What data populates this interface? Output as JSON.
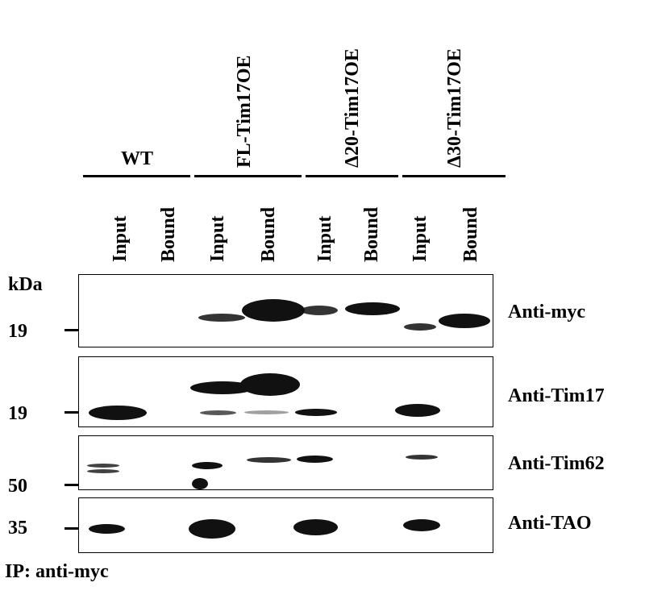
{
  "groups": [
    {
      "label": "WT"
    },
    {
      "label": "FL-Tim17OE"
    },
    {
      "label": "Δ20-Tim17OE"
    },
    {
      "label": "Δ30-Tim17OE"
    }
  ],
  "lanes": [
    "Input",
    "Bound",
    "Input",
    "Bound",
    "Input",
    "Bound",
    "Input",
    "Bound"
  ],
  "kda_label": "kDa",
  "blots": [
    {
      "label": "Anti-myc",
      "marker": "19"
    },
    {
      "label": "Anti-Tim17",
      "marker": "19"
    },
    {
      "label": "Anti-Tim62",
      "marker": "50"
    },
    {
      "label": "Anti-TAO",
      "marker": "35"
    }
  ],
  "footer": "IP: anti-myc"
}
